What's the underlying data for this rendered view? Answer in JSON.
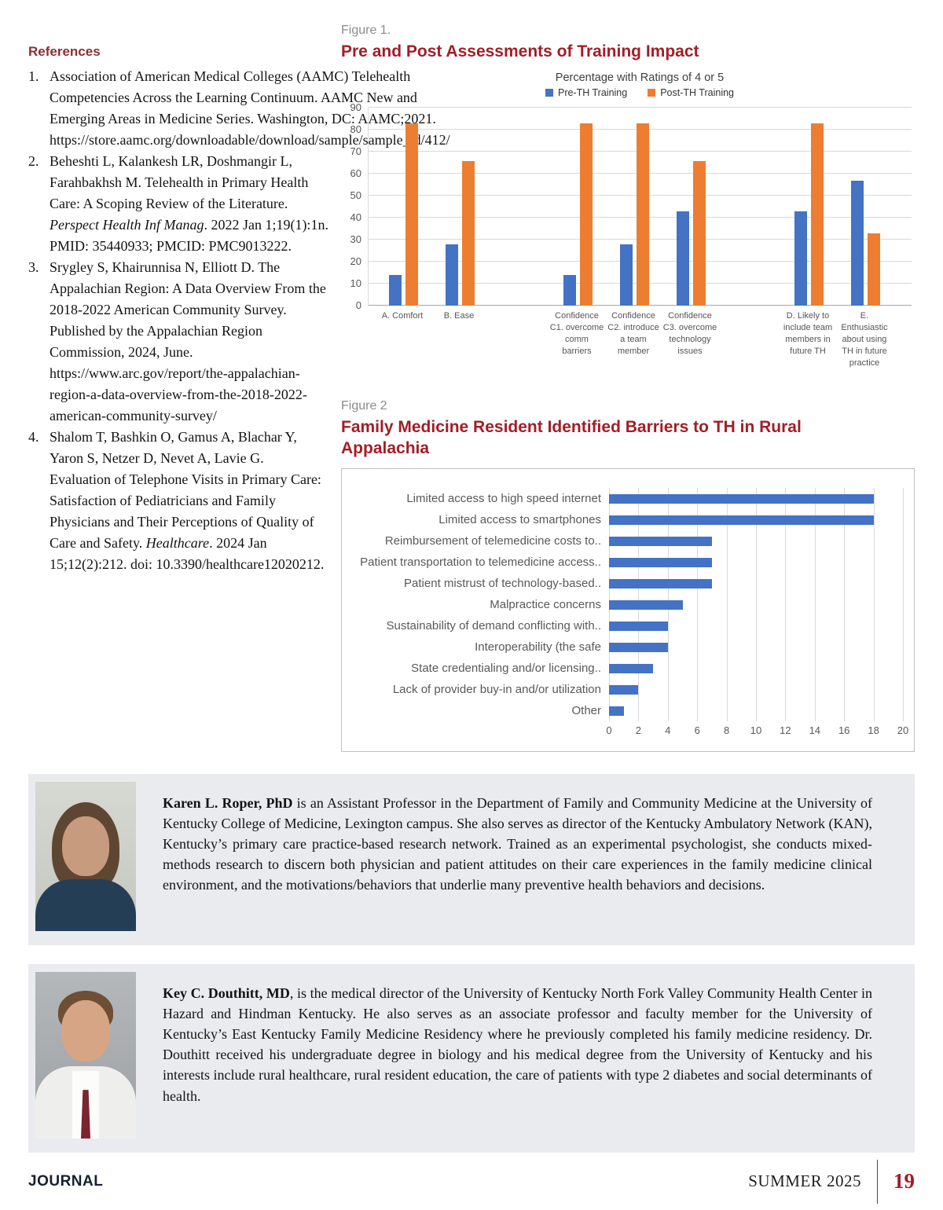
{
  "references": {
    "heading": "References",
    "items": [
      {
        "number": "1.",
        "segments": [
          {
            "text": "Association of American Medical Colleges (AAMC) Telehealth Competencies Across the Learning Continuum. AAMC New and Emerging Areas in Medicine Series. Washington, DC: AAMC;2021. https://store.aamc.org/downloadable/download/sample/sample_id/412/"
          }
        ]
      },
      {
        "number": "2.",
        "segments": [
          {
            "text": "Beheshti L, Kalankesh LR, Doshmangir L, Farahbakhsh M. Telehealth in Primary Health Care: A Scoping Review of the Literature. "
          },
          {
            "text": "Perspect Health Inf Manag",
            "italic": true
          },
          {
            "text": ". 2022 Jan 1;19(1):1n. PMID: 35440933; PMCID: PMC9013222."
          }
        ]
      },
      {
        "number": "3.",
        "segments": [
          {
            "text": "Srygley S, Khairunnisa N, Elliott D. The Appalachian Region: A Data Overview From the 2018-2022 American Community Survey. Published by the Appalachian Region Commission, 2024, June. https://www.arc.gov/report/the-appalachian-region-a-data-overview-from-the-2018-2022-american-community-survey/"
          }
        ]
      },
      {
        "number": "4.",
        "segments": [
          {
            "text": "Shalom T, Bashkin O, Gamus A, Blachar Y, Yaron S, Netzer D, Nevet A, Lavie G. Evaluation of Telephone Visits in Primary Care: Satisfaction of Pediatricians and Family Physicians and Their Perceptions of Quality of Care and Safety. "
          },
          {
            "text": "Healthcare",
            "italic": true
          },
          {
            "text": ". 2024 Jan 15;12(2):212. doi: 10.3390/healthcare12020212."
          }
        ]
      }
    ]
  },
  "figure1": {
    "label": "Figure 1.",
    "title": "Pre and Post Assessments of Training Impact"
  },
  "figure2": {
    "label": "Figure 2",
    "title": "Family Medicine Resident Identified Barriers to TH in Rural Appalachia"
  },
  "chart_data": [
    {
      "type": "bar",
      "title": "Percentage with Ratings of 4 or 5",
      "categories": [
        "A. Comfort",
        "B. Ease",
        "Confidence\nC1. overcome\ncomm\nbarriers",
        "Confidence\nC2. introduce\na team\nmember",
        "Confidence\nC3. overcome\ntechnology\nissues",
        "D. Likely to\ninclude team\nmembers in\nfuture TH",
        "E.\nEnthusiastic\nabout using\nTH in future\npractice"
      ],
      "series": [
        {
          "name": "Pre-TH Training",
          "color": "#4472C4",
          "values": [
            14,
            28,
            14,
            28,
            43,
            43,
            57
          ]
        },
        {
          "name": "Post-TH Training",
          "color": "#ED7D31",
          "values": [
            83,
            66,
            83,
            83,
            66,
            83,
            33
          ]
        }
      ],
      "ylim": [
        0,
        90
      ],
      "ytick": 10,
      "legend_position": "top",
      "grid": true,
      "gap_after": [
        1,
        4
      ]
    },
    {
      "type": "bar",
      "orientation": "horizontal",
      "categories": [
        "Limited access to high speed internet",
        "Limited access to smartphones",
        "Reimbursement of telemedicine costs to..",
        "Patient transportation to telemedicine access..",
        "Patient mistrust of technology-based..",
        "Malpractice concerns",
        "Sustainability of demand conflicting with..",
        "Interoperability (the safe",
        "State credentialing and/or licensing..",
        "Lack of provider buy-in and/or utilization",
        "Other"
      ],
      "values": [
        18,
        18,
        7,
        7,
        7,
        5,
        4,
        4,
        3,
        2,
        1
      ],
      "bar_color": "#4472C4",
      "xlim": [
        0,
        20
      ],
      "xtick": 2,
      "grid": true,
      "legend_position": "none"
    }
  ],
  "authors": [
    {
      "name": "Karen L. Roper, PhD",
      "bio": " is an Assistant Professor in the Department of Family and Community Medicine at the University of Kentucky College of Medicine, Lexington campus. She also serves as director of the Kentucky Ambulatory Network (KAN), Kentucky’s primary care practice-based research network. Trained as an experimental psychologist, she conducts mixed-methods research to discern both physician and patient attitudes on their care experiences in the family medicine clinical environment, and the motivations/behaviors that underlie many preventive health behaviors and decisions."
    },
    {
      "name": "Key C. Douthitt, MD",
      "bio": ", is the medical director of the University of Kentucky North Fork Valley Community Health Center in Hazard and Hindman Kentucky.  He also serves as an associate professor and faculty member for the University of Kentucky’s East Kentucky Family Medicine Residency where he previously completed his family medicine residency.  Dr. Douthitt received his undergraduate degree in biology and his medical degree from the University of Kentucky and his interests include rural healthcare, rural resident education, the care of patients with type 2 diabetes and social determinants of health."
    }
  ],
  "footer": {
    "journal": "JOURNAL",
    "issue": "SUMMER 2025",
    "page_number": "19"
  }
}
